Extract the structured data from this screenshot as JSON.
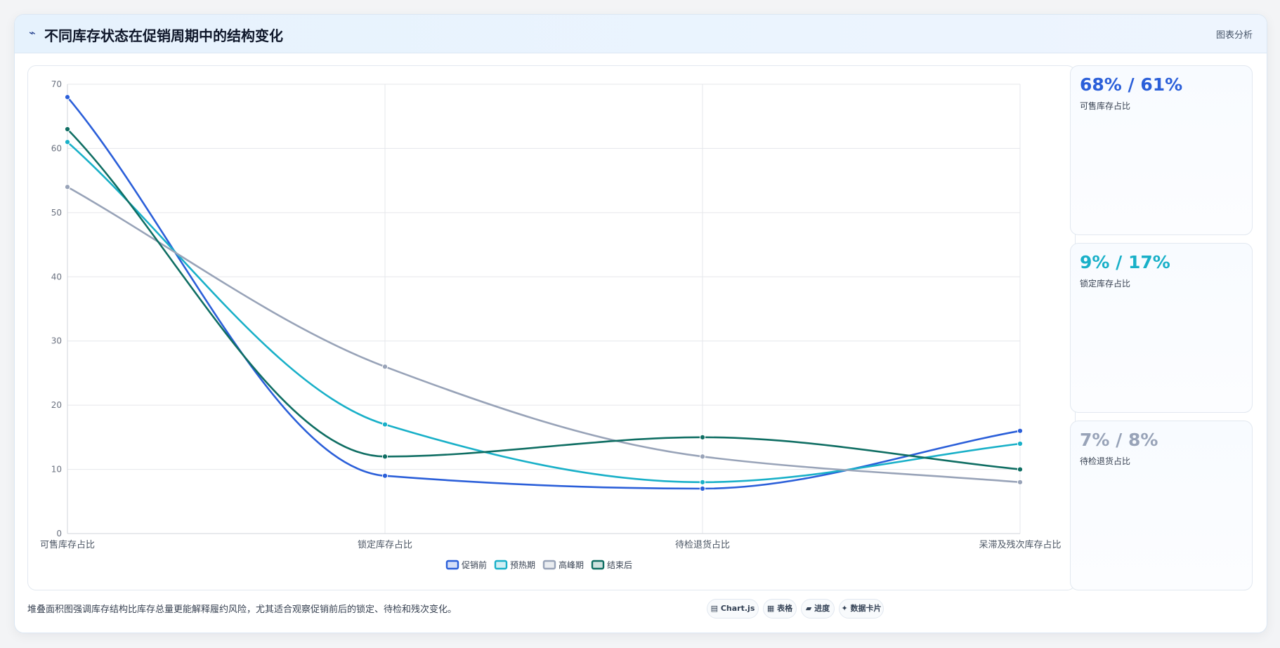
{
  "header": {
    "icon": "line-chart-icon",
    "title": "不同库存状态在促销周期中的结构变化",
    "subtitle": "图表分析"
  },
  "chart_data": {
    "type": "line",
    "categories": [
      "可售库存占比",
      "锁定库存占比",
      "待检退货占比",
      "呆滞及残次库存占比"
    ],
    "ylim": [
      0,
      70
    ],
    "yticks": [
      0,
      10,
      20,
      30,
      40,
      50,
      60,
      70
    ],
    "grid": true,
    "legend_position": "bottom",
    "series": [
      {
        "name": "促销前",
        "color": "#2b5fd9",
        "values": [
          68,
          9,
          7,
          16
        ]
      },
      {
        "name": "预热期",
        "color": "#19b0c8",
        "values": [
          61,
          17,
          8,
          14
        ]
      },
      {
        "name": "高峰期",
        "color": "#98a3b8",
        "values": [
          54,
          26,
          12,
          8
        ]
      },
      {
        "name": "结束后",
        "color": "#0f6e63",
        "values": [
          63,
          12,
          15,
          10
        ]
      }
    ]
  },
  "cards": [
    {
      "value": "68% / 61%",
      "label": "可售库存占比",
      "color": "#2b5fd9"
    },
    {
      "value": "9% / 17%",
      "label": "锁定库存占比",
      "color": "#19b0c8"
    },
    {
      "value": "7% / 8%",
      "label": "待检退货占比",
      "color": "#98a3b8"
    }
  ],
  "note": "堆叠面积图强调库存结构比库存总量更能解释履约风险，尤其适合观察促销前后的锁定、待检和残次变化。",
  "chips": [
    {
      "icon": "chart-icon",
      "glyph": "▤",
      "label": "Chart.js"
    },
    {
      "icon": "table-icon",
      "glyph": "▦",
      "label": "表格"
    },
    {
      "icon": "progress-icon",
      "glyph": "▰",
      "label": "进度"
    },
    {
      "icon": "card-icon",
      "glyph": "✦",
      "label": "数据卡片"
    }
  ]
}
